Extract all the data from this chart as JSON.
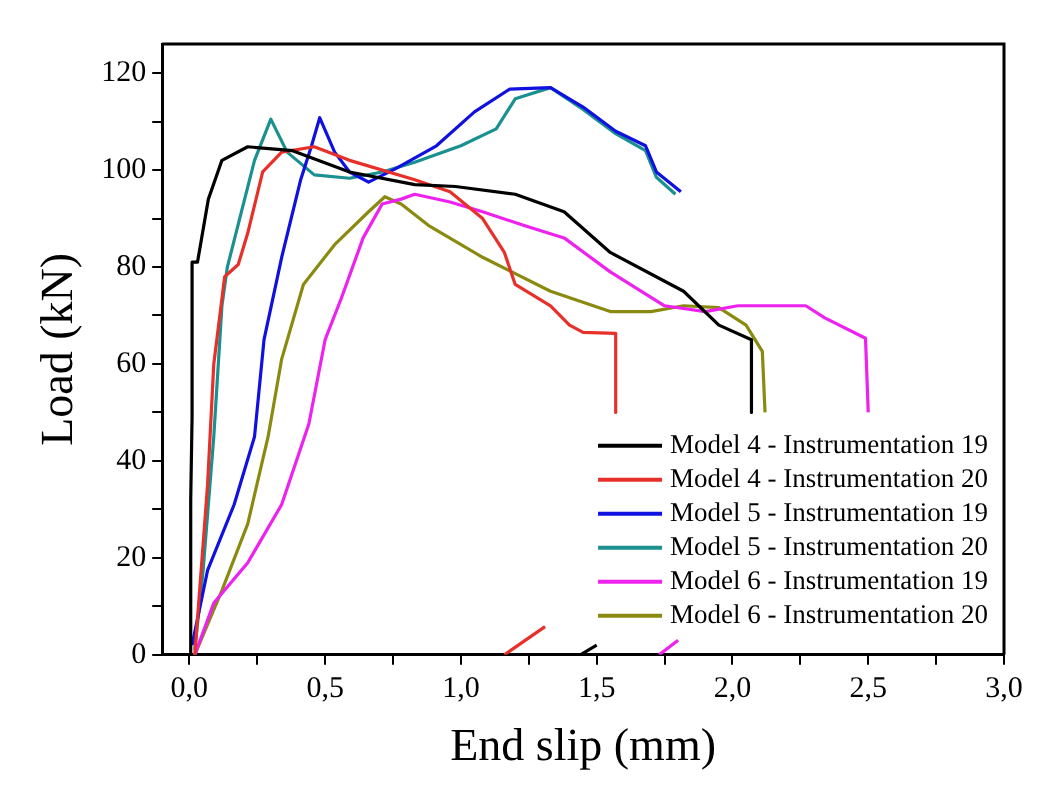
{
  "chart_data": {
    "type": "line",
    "xlabel": "End slip (mm)",
    "ylabel": "Load (kN)",
    "xlim": [
      -0.1,
      3.0
    ],
    "ylim": [
      0,
      126
    ],
    "xticks": [
      {
        "value": 0,
        "label": "0,0"
      },
      {
        "value": 0.25,
        "label": null
      },
      {
        "value": 0.5,
        "label": "0,5"
      },
      {
        "value": 0.75,
        "label": null
      },
      {
        "value": 1.0,
        "label": "1,0"
      },
      {
        "value": 1.25,
        "label": null
      },
      {
        "value": 1.5,
        "label": "1,5"
      },
      {
        "value": 1.75,
        "label": null
      },
      {
        "value": 2.0,
        "label": "2,0"
      },
      {
        "value": 2.25,
        "label": null
      },
      {
        "value": 2.5,
        "label": "2,5"
      },
      {
        "value": 2.75,
        "label": null
      },
      {
        "value": 3.0,
        "label": "3,0"
      }
    ],
    "yticks": [
      0,
      {
        "value": 10,
        "label": null
      },
      20,
      {
        "value": 30,
        "label": null
      },
      40,
      {
        "value": 50,
        "label": null
      },
      60,
      {
        "value": 70,
        "label": null
      },
      80,
      {
        "value": 90,
        "label": null
      },
      100,
      {
        "value": 110,
        "label": null
      },
      120
    ],
    "grid": false,
    "legend": "bottom right",
    "marker": "none",
    "line_style": "solid",
    "series": [
      {
        "name": "Model 4 - Instrumentation 19",
        "color": "#000000",
        "x": [
          0.005,
          0.005,
          0.01,
          0.01,
          0.03,
          0.07,
          0.12,
          0.215,
          0.38,
          0.59,
          0.83,
          0.98,
          1.2,
          1.38,
          1.55,
          1.82,
          1.95,
          2.07,
          2.07,
          null,
          1.44,
          1.5
        ],
        "values": [
          0,
          32,
          49,
          81,
          81,
          94,
          102,
          104.8,
          104,
          99.6,
          97,
          96.6,
          95,
          91.4,
          83,
          75,
          68,
          65,
          50,
          null,
          0,
          2
        ]
      },
      {
        "name": "Model 4 - Instrumentation 20",
        "color": "#e8302a",
        "x": [
          0.02,
          0.067,
          0.09,
          0.13,
          0.18,
          0.215,
          0.27,
          0.34,
          0.46,
          0.59,
          0.83,
          0.96,
          1.08,
          1.16,
          1.2,
          1.33,
          1.4,
          1.45,
          1.57,
          1.57,
          null,
          1.16,
          1.31
        ],
        "values": [
          0,
          35,
          60,
          78,
          80.5,
          87,
          99.6,
          103.7,
          104.8,
          102,
          98,
          95.5,
          90,
          83,
          76.4,
          72,
          68,
          66.5,
          66.3,
          50,
          null,
          0,
          5.8
        ]
      },
      {
        "name": "Model 5 - Instrumentation 19",
        "color": "#1010e0",
        "x": [
          0.01,
          0.067,
          0.165,
          0.24,
          0.275,
          0.34,
          0.41,
          0.45,
          0.48,
          0.535,
          0.59,
          0.66,
          0.76,
          0.91,
          1.05,
          1.18,
          1.33,
          1.45,
          1.57,
          1.68,
          1.72,
          1.81
        ],
        "values": [
          2,
          17.4,
          31,
          45,
          65,
          82,
          98,
          105,
          110.8,
          103.7,
          99.6,
          97.5,
          100.3,
          105,
          112,
          116.7,
          117,
          113,
          108,
          105,
          99.6,
          95.5
        ]
      },
      {
        "name": "Model 5 - Instrumentation 20",
        "color": "#1a9090",
        "x": [
          0.02,
          0.05,
          0.09,
          0.12,
          0.14,
          0.19,
          0.24,
          0.3,
          0.36,
          0.46,
          0.59,
          0.71,
          0.83,
          1.0,
          1.13,
          1.2,
          1.33,
          1.45,
          1.57,
          1.68,
          1.72,
          1.79
        ],
        "values": [
          1,
          17,
          45,
          72,
          80,
          91,
          102,
          110.5,
          103.7,
          99,
          98.3,
          99.6,
          101.6,
          105,
          108.5,
          114.7,
          117,
          112.5,
          107.5,
          104,
          98.5,
          95
        ]
      },
      {
        "name": "Model 6 - Instrumentation 19",
        "color": "#ee22ee",
        "x": [
          0.02,
          0.09,
          0.215,
          0.34,
          0.44,
          0.5,
          0.56,
          0.64,
          0.71,
          0.78,
          0.83,
          0.96,
          1.08,
          1.23,
          1.38,
          1.55,
          1.75,
          1.9,
          2.02,
          2.27,
          2.34,
          2.49,
          2.5,
          null,
          1.73,
          1.8
        ],
        "values": [
          0,
          10.7,
          19,
          31,
          47.6,
          65,
          73.6,
          86,
          93,
          94,
          95,
          93.4,
          91.4,
          88.6,
          86,
          79,
          72,
          70.8,
          72,
          72,
          69.5,
          65.3,
          50,
          null,
          0,
          3
        ]
      },
      {
        "name": "Model 6 - Instrumentation 20",
        "color": "#8a8a10",
        "x": [
          0.02,
          0.12,
          0.215,
          0.29,
          0.34,
          0.42,
          0.535,
          0.66,
          0.72,
          0.78,
          0.88,
          1.08,
          1.33,
          1.55,
          1.7,
          1.82,
          1.95,
          2.05,
          2.11,
          2.12
        ],
        "values": [
          0,
          13.3,
          27,
          45,
          61,
          76.4,
          84.6,
          91.4,
          94.5,
          93,
          88.6,
          82,
          75,
          70.8,
          70.8,
          72,
          71.6,
          68,
          62.6,
          50
        ]
      }
    ]
  }
}
